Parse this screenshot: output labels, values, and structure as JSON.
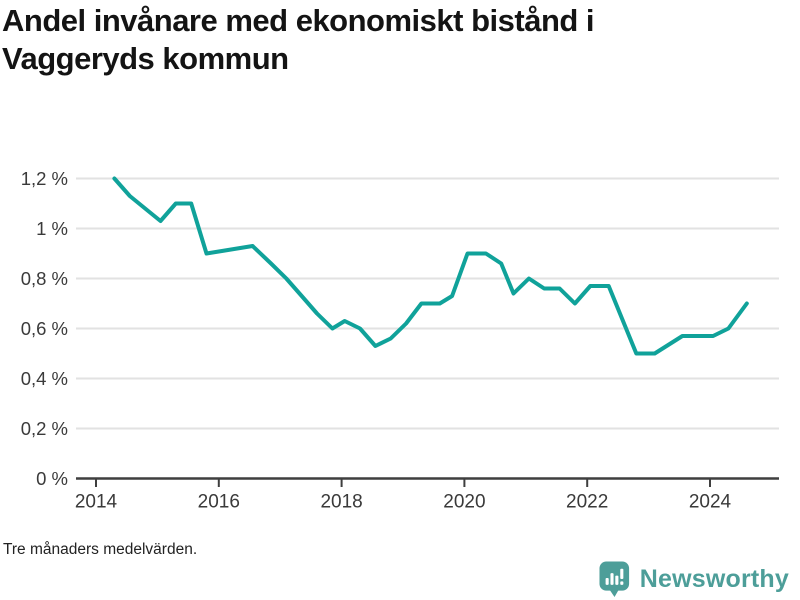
{
  "title": "Andel invånare med ekonomiskt bistånd i Vaggeryds kommun",
  "footnote": "Tre månaders medelvärden.",
  "brand": {
    "name": "Newsworthy",
    "icon": "newsworthy-speech-bubble-bar-chart-icon",
    "color": "#4d9e99"
  },
  "colors": {
    "line": "#10a29a",
    "grid": "#e2e2e2",
    "axis": "#3f3f3f",
    "tick_text": "#3a3a3a",
    "title_text": "#141414",
    "footnote_text": "#222222"
  },
  "chart_data": {
    "type": "line",
    "title": "Andel invånare med ekonomiskt bistånd i Vaggeryds kommun",
    "subtitle": "Tre månaders medelvärden.",
    "xlabel": "",
    "ylabel": "",
    "unit": "%",
    "xlim": [
      2013.8,
      2025.1
    ],
    "ylim": [
      0,
      1.2
    ],
    "grid": "horizontal",
    "legend": "none",
    "y_ticks": [
      {
        "value": 0,
        "label": "0 %"
      },
      {
        "value": 0.2,
        "label": "0,2 %"
      },
      {
        "value": 0.4,
        "label": "0,4 %"
      },
      {
        "value": 0.6,
        "label": "0,6 %"
      },
      {
        "value": 0.8,
        "label": "0,8 %"
      },
      {
        "value": 1.0,
        "label": "1 %"
      },
      {
        "value": 1.2,
        "label": "1,2 %"
      }
    ],
    "x_ticks": [
      {
        "value": 2014,
        "label": "2014"
      },
      {
        "value": 2016,
        "label": "2016"
      },
      {
        "value": 2018,
        "label": "2018"
      },
      {
        "value": 2020,
        "label": "2020"
      },
      {
        "value": 2022,
        "label": "2022"
      },
      {
        "value": 2024,
        "label": "2024"
      }
    ],
    "series": [
      {
        "name": "Andel invånare med ekonomiskt bistånd",
        "color": "#10a29a",
        "points": [
          [
            2014.3,
            1.2
          ],
          [
            2014.55,
            1.13
          ],
          [
            2014.85,
            1.07
          ],
          [
            2015.05,
            1.03
          ],
          [
            2015.3,
            1.1
          ],
          [
            2015.55,
            1.1
          ],
          [
            2015.8,
            0.9
          ],
          [
            2016.05,
            0.91
          ],
          [
            2016.3,
            0.92
          ],
          [
            2016.55,
            0.93
          ],
          [
            2016.85,
            0.86
          ],
          [
            2017.1,
            0.8
          ],
          [
            2017.35,
            0.73
          ],
          [
            2017.6,
            0.66
          ],
          [
            2017.85,
            0.6
          ],
          [
            2018.05,
            0.63
          ],
          [
            2018.3,
            0.6
          ],
          [
            2018.55,
            0.53
          ],
          [
            2018.8,
            0.56
          ],
          [
            2019.05,
            0.62
          ],
          [
            2019.3,
            0.7
          ],
          [
            2019.6,
            0.7
          ],
          [
            2019.8,
            0.73
          ],
          [
            2020.05,
            0.9
          ],
          [
            2020.35,
            0.9
          ],
          [
            2020.6,
            0.86
          ],
          [
            2020.8,
            0.74
          ],
          [
            2021.05,
            0.8
          ],
          [
            2021.3,
            0.76
          ],
          [
            2021.55,
            0.76
          ],
          [
            2021.8,
            0.7
          ],
          [
            2022.05,
            0.77
          ],
          [
            2022.35,
            0.77
          ],
          [
            2022.8,
            0.5
          ],
          [
            2023.1,
            0.5
          ],
          [
            2023.55,
            0.57
          ],
          [
            2024.05,
            0.57
          ],
          [
            2024.3,
            0.6
          ],
          [
            2024.6,
            0.7
          ]
        ]
      }
    ]
  }
}
